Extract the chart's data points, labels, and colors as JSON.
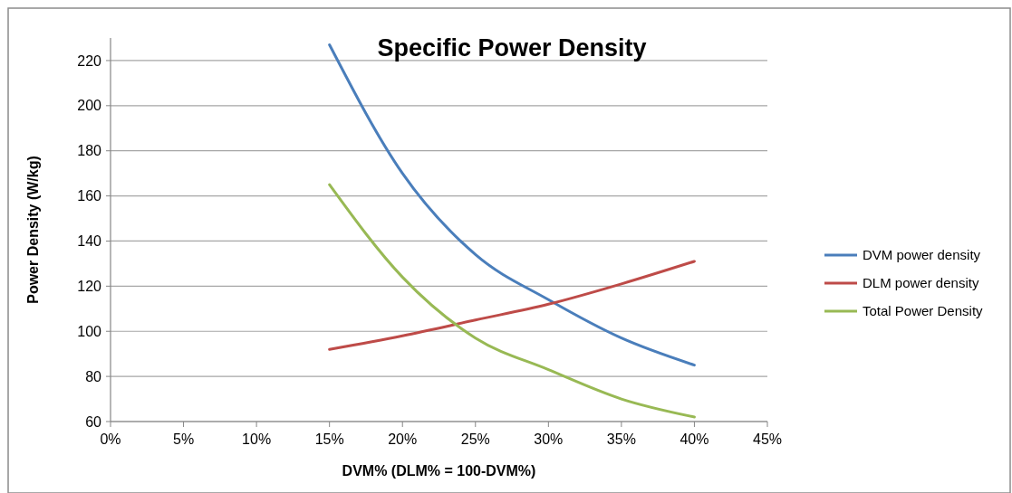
{
  "chart_data": {
    "type": "line",
    "title": "Specific Power Density",
    "xlabel": "DVM% (DLM% = 100-DVM%)",
    "ylabel": "Power Density (W/kg)",
    "x": [
      15,
      20,
      25,
      30,
      35,
      40
    ],
    "series": [
      {
        "name": "DVM power density",
        "color": "#4a7ebb",
        "values": [
          227,
          170,
          134,
          114,
          97,
          85
        ]
      },
      {
        "name": "DLM power density",
        "color": "#be4b48",
        "values": [
          92,
          98,
          105,
          112,
          121,
          131
        ]
      },
      {
        "name": "Total Power Density",
        "color": "#98b954",
        "values": [
          165,
          124,
          97,
          83,
          70,
          62
        ]
      }
    ],
    "xlim": [
      0,
      45
    ],
    "xticks": [
      {
        "value": 0,
        "label": "0%"
      },
      {
        "value": 5,
        "label": "5%"
      },
      {
        "value": 10,
        "label": "10%"
      },
      {
        "value": 15,
        "label": "15%"
      },
      {
        "value": 20,
        "label": "20%"
      },
      {
        "value": 25,
        "label": "25%"
      },
      {
        "value": 30,
        "label": "30%"
      },
      {
        "value": 35,
        "label": "35%"
      },
      {
        "value": 40,
        "label": "40%"
      },
      {
        "value": 45,
        "label": "45%"
      }
    ],
    "ylim": [
      60,
      230
    ],
    "yticks": [
      60,
      80,
      100,
      120,
      140,
      160,
      180,
      200,
      220
    ],
    "grid": "y",
    "legend": "right",
    "marker": "none",
    "line_style": "solid"
  }
}
